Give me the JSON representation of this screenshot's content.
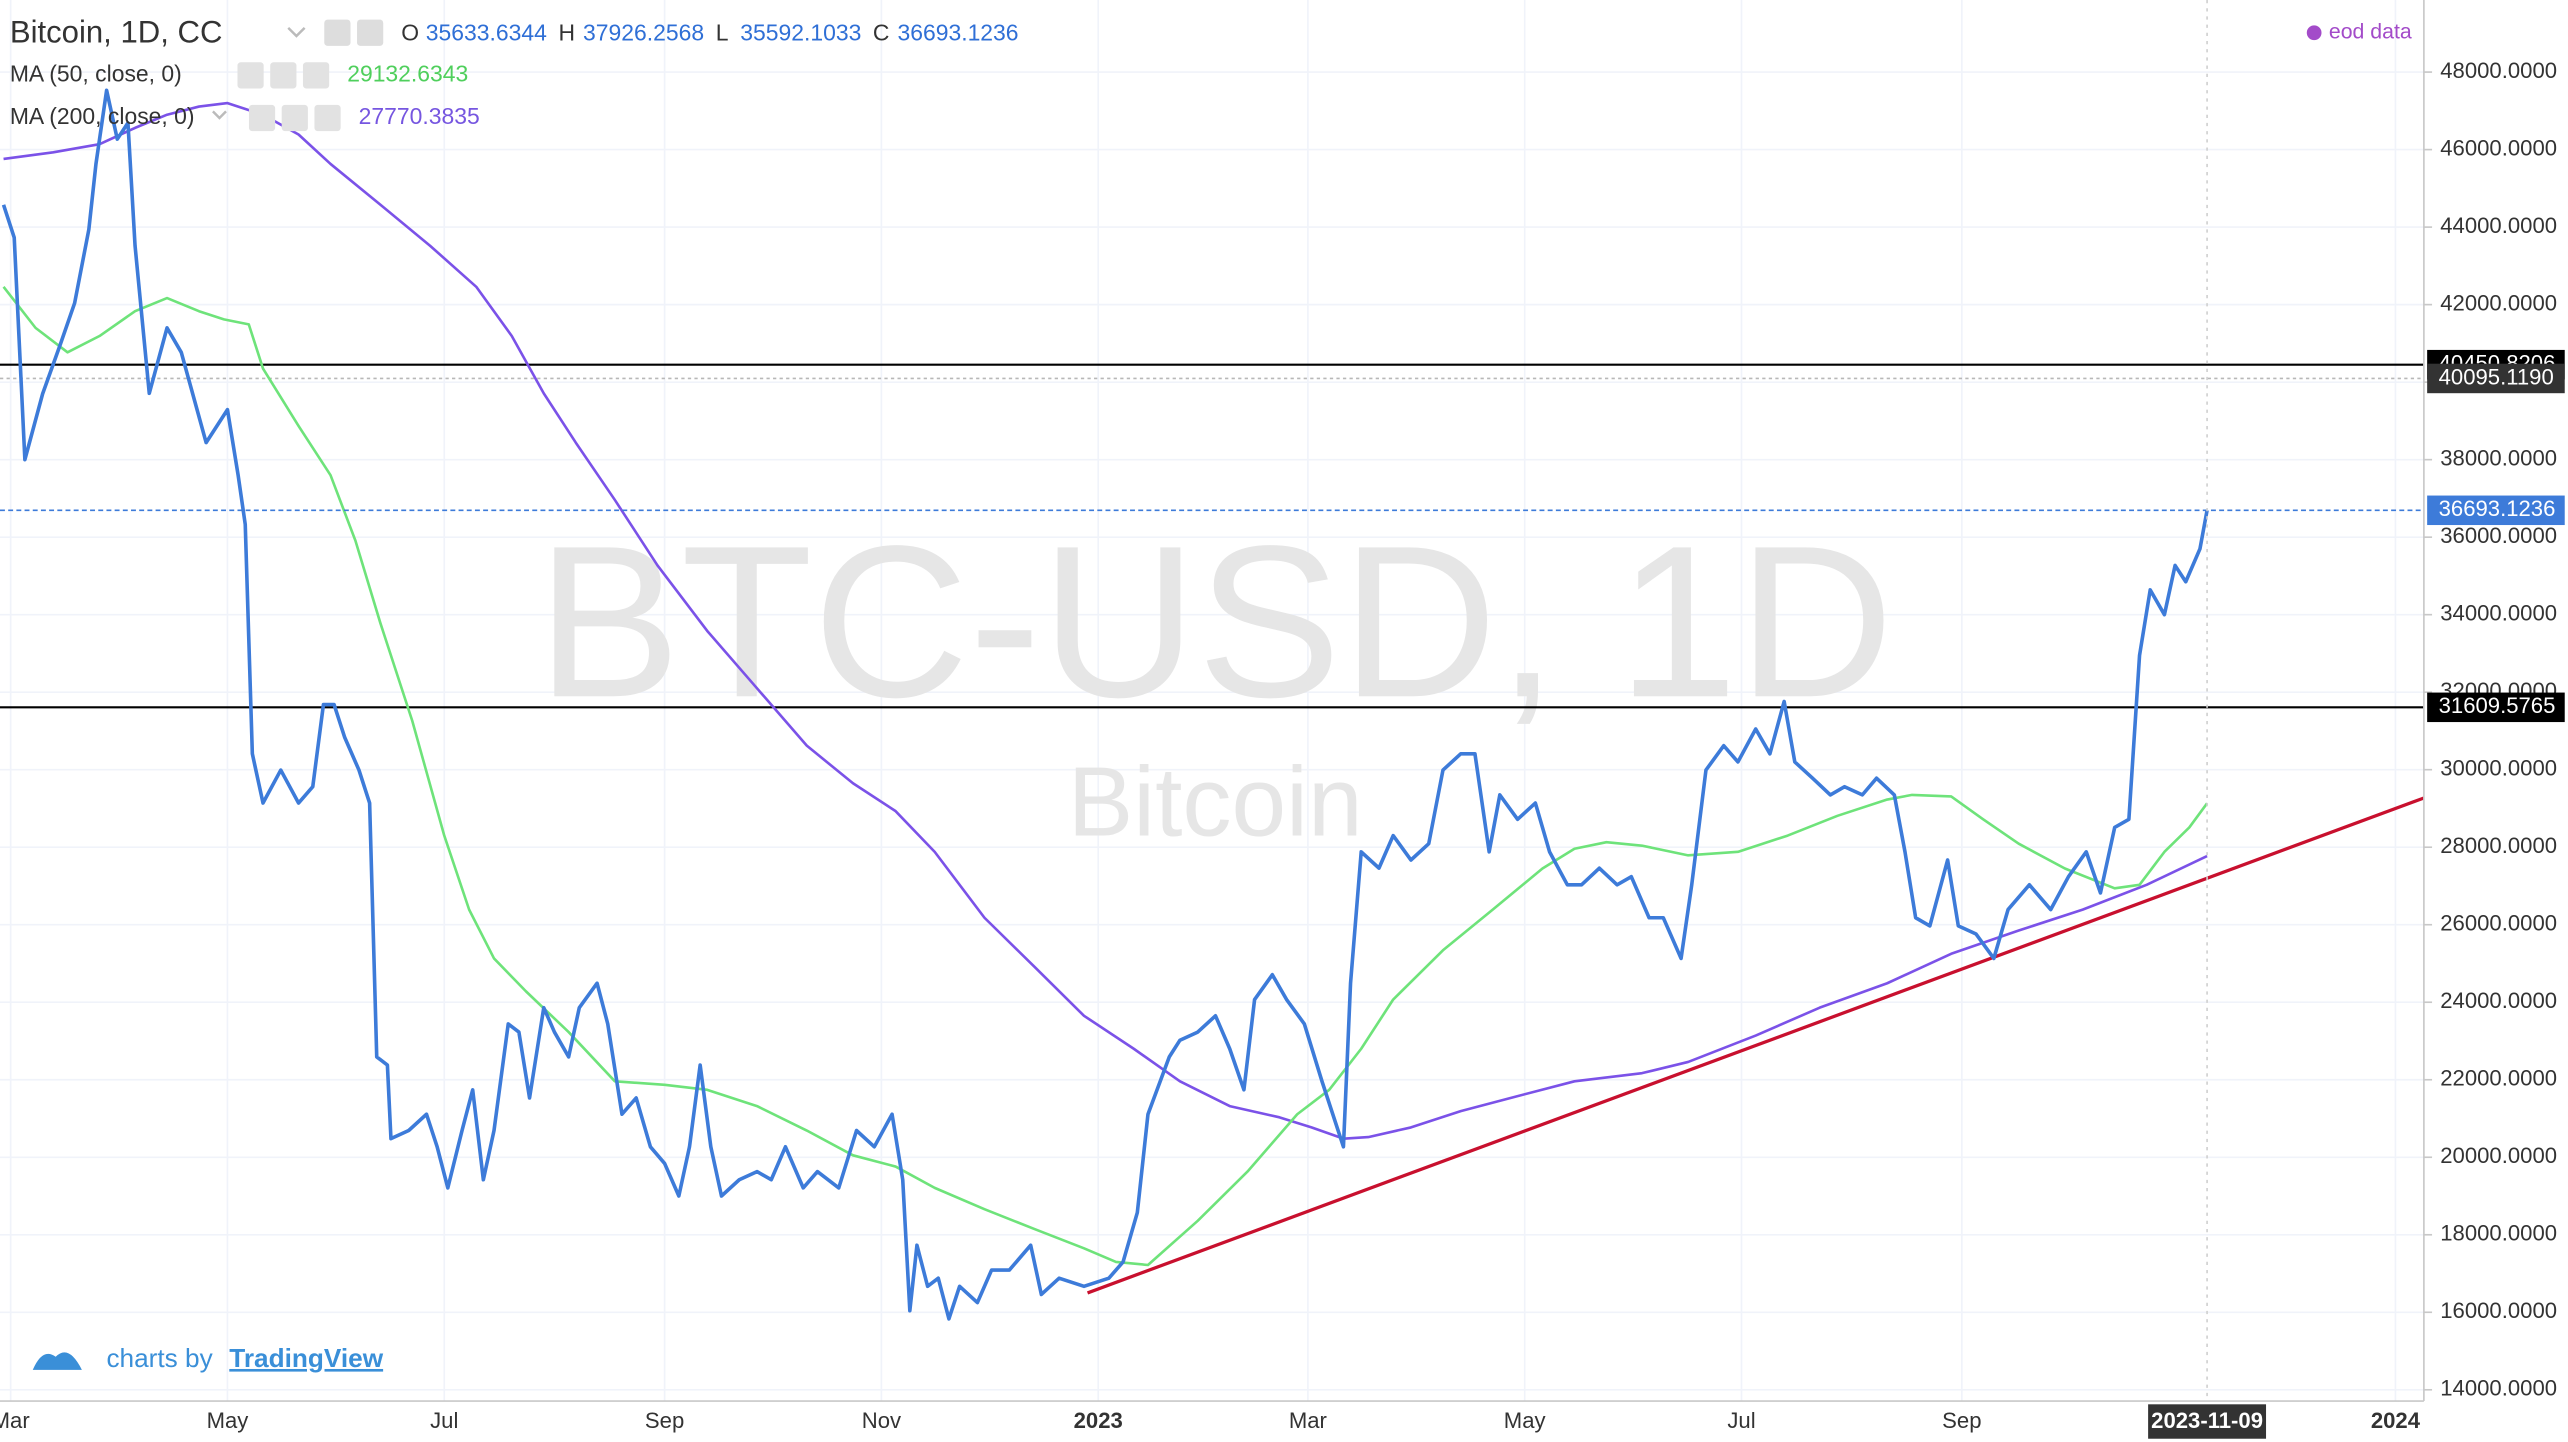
{
  "chart_data": {
    "type": "line",
    "title": "Bitcoin, 1D, CC",
    "ohlc": [
      {
        "label": "O",
        "value": 35633.6344
      },
      {
        "label": "H",
        "value": 37926.2568
      },
      {
        "label": "L",
        "value": 35592.1033
      },
      {
        "label": "C",
        "value": 36693.1236
      }
    ],
    "source_label": "eod data",
    "watermark": "BTC-USD, 1D",
    "watermark_subtitle": "Bitcoin",
    "branding": {
      "prefix": "charts by",
      "name": "TradingView"
    },
    "xlim": [
      "2022-02-26",
      "2024-01-09"
    ],
    "xticks": [
      {
        "value": "2022-03-01",
        "label": "Mar"
      },
      {
        "value": "2022-05-01",
        "label": "May"
      },
      {
        "value": "2022-07-01",
        "label": "Jul"
      },
      {
        "value": "2022-09-01",
        "label": "Sep"
      },
      {
        "value": "2022-11-01",
        "label": "Nov"
      },
      {
        "value": "2023-01-01",
        "label": "2023"
      },
      {
        "value": "2023-03-01",
        "label": "Mar"
      },
      {
        "value": "2023-05-01",
        "label": "May"
      },
      {
        "value": "2023-07-01",
        "label": "Jul"
      },
      {
        "value": "2023-09-01",
        "label": "Sep"
      },
      {
        "value": "2024-01-01",
        "label": "2024"
      }
    ],
    "ylim": [
      13710,
      49860
    ],
    "yticks": [
      {
        "value": 14000,
        "label": "14000.0000"
      },
      {
        "value": 16000,
        "label": "16000.0000"
      },
      {
        "value": 18000,
        "label": "18000.0000"
      },
      {
        "value": 20000,
        "label": "20000.0000"
      },
      {
        "value": 22000,
        "label": "22000.0000"
      },
      {
        "value": 24000,
        "label": "24000.0000"
      },
      {
        "value": 26000,
        "label": "26000.0000"
      },
      {
        "value": 28000,
        "label": "28000.0000"
      },
      {
        "value": 30000,
        "label": "30000.0000"
      },
      {
        "value": 32000,
        "label": "32000.0000"
      },
      {
        "value": 34000,
        "label": "34000.0000"
      },
      {
        "value": 36000,
        "label": "36000.0000"
      },
      {
        "value": 38000,
        "label": "38000.0000"
      },
      {
        "value": 40000,
        "label": "40000.0000"
      },
      {
        "value": 42000,
        "label": "42000.0000"
      },
      {
        "value": 44000,
        "label": "44000.0000"
      },
      {
        "value": 46000,
        "label": "46000.0000"
      },
      {
        "value": 48000,
        "label": "48000.0000"
      }
    ],
    "grid": true,
    "series": [
      {
        "name": "Bitcoin, 1D, CC",
        "color": "#3d7bd9",
        "x": [
          "2022-02-27",
          "2022-03-02",
          "2022-03-05",
          "2022-03-10",
          "2022-03-15",
          "2022-03-19",
          "2022-03-23",
          "2022-03-25",
          "2022-03-28",
          "2022-03-31",
          "2022-04-03",
          "2022-04-05",
          "2022-04-09",
          "2022-04-14",
          "2022-04-18",
          "2022-04-25",
          "2022-05-01",
          "2022-05-04",
          "2022-05-06",
          "2022-05-08",
          "2022-05-11",
          "2022-05-16",
          "2022-05-21",
          "2022-05-25",
          "2022-05-28",
          "2022-05-31",
          "2022-06-03",
          "2022-06-07",
          "2022-06-10",
          "2022-06-12",
          "2022-06-15",
          "2022-06-16",
          "2022-06-21",
          "2022-06-26",
          "2022-06-29",
          "2022-07-02",
          "2022-07-06",
          "2022-07-09",
          "2022-07-12",
          "2022-07-15",
          "2022-07-19",
          "2022-07-22",
          "2022-07-25",
          "2022-07-29",
          "2022-08-01",
          "2022-08-05",
          "2022-08-08",
          "2022-08-13",
          "2022-08-16",
          "2022-08-20",
          "2022-08-24",
          "2022-08-28",
          "2022-09-01",
          "2022-09-05",
          "2022-09-08",
          "2022-09-11",
          "2022-09-14",
          "2022-09-17",
          "2022-09-22",
          "2022-09-27",
          "2022-10-01",
          "2022-10-05",
          "2022-10-10",
          "2022-10-14",
          "2022-10-20",
          "2022-10-25",
          "2022-10-30",
          "2022-11-04",
          "2022-11-07",
          "2022-11-09",
          "2022-11-11",
          "2022-11-14",
          "2022-11-17",
          "2022-11-20",
          "2022-11-23",
          "2022-11-28",
          "2022-12-02",
          "2022-12-07",
          "2022-12-13",
          "2022-12-16",
          "2022-12-21",
          "2022-12-28",
          "2023-01-04",
          "2023-01-08",
          "2023-01-12",
          "2023-01-15",
          "2023-01-21",
          "2023-01-24",
          "2023-01-29",
          "2023-02-03",
          "2023-02-07",
          "2023-02-11",
          "2023-02-14",
          "2023-02-19",
          "2023-02-23",
          "2023-02-28",
          "2023-03-05",
          "2023-03-08",
          "2023-03-11",
          "2023-03-13",
          "2023-03-16",
          "2023-03-21",
          "2023-03-25",
          "2023-03-30",
          "2023-04-04",
          "2023-04-08",
          "2023-04-13",
          "2023-04-17",
          "2023-04-21",
          "2023-04-24",
          "2023-04-29",
          "2023-05-04",
          "2023-05-08",
          "2023-05-13",
          "2023-05-17",
          "2023-05-22",
          "2023-05-27",
          "2023-05-31",
          "2023-06-05",
          "2023-06-09",
          "2023-06-14",
          "2023-06-17",
          "2023-06-21",
          "2023-06-26",
          "2023-06-30",
          "2023-07-05",
          "2023-07-09",
          "2023-07-13",
          "2023-07-16",
          "2023-07-21",
          "2023-07-26",
          "2023-07-30",
          "2023-08-04",
          "2023-08-08",
          "2023-08-13",
          "2023-08-16",
          "2023-08-19",
          "2023-08-23",
          "2023-08-28",
          "2023-08-31",
          "2023-09-05",
          "2023-09-10",
          "2023-09-14",
          "2023-09-20",
          "2023-09-26",
          "2023-10-01",
          "2023-10-06",
          "2023-10-10",
          "2023-10-14",
          "2023-10-18",
          "2023-10-21",
          "2023-10-24",
          "2023-10-28",
          "2023-10-31",
          "2023-11-03",
          "2023-11-07",
          "2023-11-09"
        ],
        "values": [
          44575,
          43730,
          38000,
          39700,
          40980,
          42040,
          43940,
          45630,
          47530,
          46270,
          46690,
          43520,
          39710,
          41400,
          40770,
          38440,
          39290,
          37600,
          36330,
          30410,
          29140,
          29990,
          29140,
          29560,
          31680,
          31680,
          30830,
          29990,
          29140,
          22590,
          22380,
          20480,
          20690,
          21110,
          20270,
          19210,
          20690,
          21740,
          19420,
          20690,
          23440,
          23230,
          21530,
          23860,
          23230,
          22590,
          23860,
          24490,
          23440,
          21110,
          21530,
          20270,
          19840,
          19000,
          20270,
          22380,
          20270,
          19000,
          19420,
          19630,
          19420,
          20270,
          19210,
          19630,
          19210,
          20690,
          20270,
          21110,
          19420,
          16040,
          17730,
          16670,
          16880,
          15830,
          16670,
          16250,
          17090,
          17090,
          17730,
          16460,
          16880,
          16670,
          16880,
          17300,
          18570,
          21110,
          22590,
          23020,
          23230,
          23650,
          22800,
          21740,
          24070,
          24710,
          24070,
          23440,
          21950,
          21110,
          20270,
          24490,
          27880,
          27460,
          28300,
          27670,
          28090,
          29990,
          30410,
          30410,
          27880,
          29350,
          28720,
          29140,
          27880,
          27030,
          27030,
          27460,
          27030,
          27240,
          26180,
          26180,
          25130,
          27030,
          29990,
          30620,
          30200,
          31050,
          30410,
          31760,
          30200,
          29780,
          29350,
          29560,
          29350,
          29780,
          29350,
          27880,
          26180,
          25970,
          27670,
          25970,
          25760,
          25130,
          26390,
          27030,
          26390,
          27240,
          27880,
          26820,
          28510,
          28720,
          32950,
          34640,
          34000,
          35270,
          34850,
          35700,
          36693.1236
        ]
      },
      {
        "name": "MA (50, close, 0)",
        "color": "#6ee37a",
        "x": [
          "2022-02-27",
          "2022-03-08",
          "2022-03-17",
          "2022-03-26",
          "2022-04-05",
          "2022-04-14",
          "2022-04-23",
          "2022-04-30",
          "2022-05-07",
          "2022-05-11",
          "2022-05-21",
          "2022-05-30",
          "2022-06-06",
          "2022-06-13",
          "2022-06-22",
          "2022-07-01",
          "2022-07-08",
          "2022-07-15",
          "2022-07-24",
          "2022-08-05",
          "2022-08-18",
          "2022-09-01",
          "2022-09-13",
          "2022-09-27",
          "2022-10-11",
          "2022-10-24",
          "2022-11-05",
          "2022-11-16",
          "2022-11-30",
          "2022-12-14",
          "2022-12-28",
          "2023-01-06",
          "2023-01-15",
          "2023-01-29",
          "2023-02-12",
          "2023-02-26",
          "2023-03-07",
          "2023-03-16",
          "2023-03-25",
          "2023-04-08",
          "2023-04-22",
          "2023-05-06",
          "2023-05-15",
          "2023-05-24",
          "2023-06-03",
          "2023-06-16",
          "2023-06-30",
          "2023-07-14",
          "2023-07-28",
          "2023-08-11",
          "2023-08-18",
          "2023-08-29",
          "2023-09-07",
          "2023-09-17",
          "2023-09-30",
          "2023-10-14",
          "2023-10-21",
          "2023-10-28",
          "2023-11-04",
          "2023-11-09"
        ],
        "values": [
          42460,
          41400,
          40770,
          41190,
          41830,
          42170,
          41830,
          41620,
          41490,
          40350,
          38870,
          37600,
          35910,
          33790,
          31260,
          28300,
          26390,
          25130,
          24280,
          23230,
          21960,
          21870,
          21740,
          21320,
          20690,
          20050,
          19760,
          19210,
          18660,
          18150,
          17650,
          17300,
          17220,
          18360,
          19630,
          21110,
          21740,
          22800,
          24070,
          25340,
          26390,
          27450,
          27960,
          28130,
          28040,
          27790,
          27880,
          28300,
          28810,
          29230,
          29350,
          29310,
          28720,
          28090,
          27450,
          26940,
          27030,
          27880,
          28510,
          29132.6343
        ]
      },
      {
        "name": "MA (200, close, 0)",
        "color": "#7b52e8",
        "x": [
          "2022-02-27",
          "2022-03-13",
          "2022-03-26",
          "2022-04-05",
          "2022-04-14",
          "2022-04-23",
          "2022-05-01",
          "2022-05-11",
          "2022-05-21",
          "2022-05-30",
          "2022-06-13",
          "2022-06-27",
          "2022-07-10",
          "2022-07-20",
          "2022-07-29",
          "2022-08-07",
          "2022-08-18",
          "2022-08-30",
          "2022-09-13",
          "2022-09-27",
          "2022-10-11",
          "2022-10-24",
          "2022-11-05",
          "2022-11-16",
          "2022-11-30",
          "2022-12-14",
          "2022-12-28",
          "2023-01-11",
          "2023-01-24",
          "2023-02-07",
          "2023-02-21",
          "2023-03-02",
          "2023-03-11",
          "2023-03-18",
          "2023-03-30",
          "2023-04-13",
          "2023-04-27",
          "2023-05-15",
          "2023-06-03",
          "2023-06-16",
          "2023-07-05",
          "2023-07-23",
          "2023-08-11",
          "2023-08-29",
          "2023-09-17",
          "2023-10-05",
          "2023-10-23",
          "2023-11-09"
        ],
        "values": [
          45760,
          45930,
          46140,
          46560,
          46900,
          47110,
          47200,
          46900,
          46390,
          45630,
          44580,
          43520,
          42460,
          41190,
          39710,
          38440,
          36960,
          35270,
          33580,
          32100,
          30620,
          29650,
          28930,
          27880,
          26180,
          24920,
          23650,
          22800,
          21960,
          21320,
          21030,
          20770,
          20480,
          20520,
          20770,
          21190,
          21530,
          21960,
          22170,
          22460,
          23140,
          23860,
          24490,
          25250,
          25850,
          26390,
          27030,
          27770.3835
        ]
      }
    ],
    "trendline": {
      "x": [
        "2022-12-29",
        "2024-01-09"
      ],
      "values": [
        16500,
        29270
      ],
      "color": "#c8102e"
    },
    "hlines": [
      {
        "value": 40450.8206,
        "color": "#000000",
        "style": "solid"
      },
      {
        "value": {
          "value": 40095.119,
          "label": "40095.1190"
        },
        "color": "#b8b8b8",
        "style": "dotted"
      },
      {
        "value": 31609.5765,
        "color": "#000000",
        "style": "solid"
      }
    ]
  }
}
